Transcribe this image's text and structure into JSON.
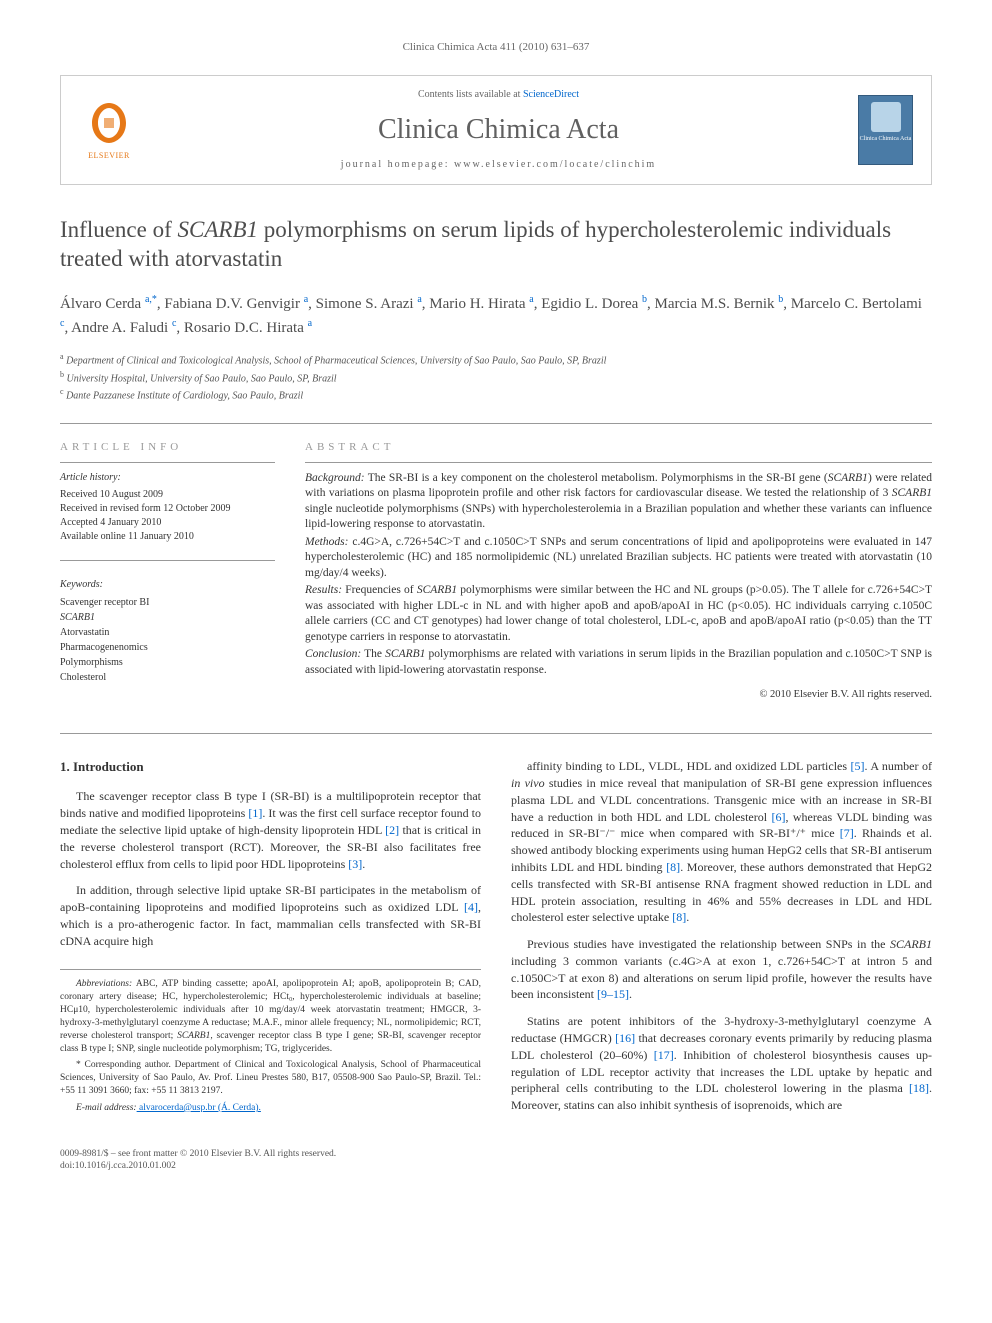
{
  "running_head": "Clinica Chimica Acta 411 (2010) 631–637",
  "banner": {
    "contents_prefix": "Contents lists available at ",
    "contents_link": "ScienceDirect",
    "journal_title": "Clinica Chimica Acta",
    "homepage_prefix": "journal homepage: ",
    "homepage_url": "www.elsevier.com/locate/clinchim",
    "elsevier_label": "ELSEVIER",
    "cover_label": "Clinica Chimica Acta"
  },
  "article": {
    "title_pre": "Influence of ",
    "title_gene": "SCARB1",
    "title_post": " polymorphisms on serum lipids of hypercholesterolemic individuals treated with atorvastatin",
    "authors_html": "Álvaro Cerda <sup>a,*</sup>, Fabiana D.V. Genvigir <sup>a</sup>, Simone S. Arazi <sup>a</sup>, Mario H. Hirata <sup>a</sup>, Egidio L. Dorea <sup>b</sup>, Marcia M.S. Bernik <sup>b</sup>, Marcelo C. Bertolami <sup>c</sup>, Andre A. Faludi <sup>c</sup>, Rosario D.C. Hirata <sup>a</sup>",
    "affiliations": {
      "a": "Department of Clinical and Toxicological Analysis, School of Pharmaceutical Sciences, University of Sao Paulo, Sao Paulo, SP, Brazil",
      "b": "University Hospital, University of Sao Paulo, Sao Paulo, SP, Brazil",
      "c": "Dante Pazzanese Institute of Cardiology, Sao Paulo, Brazil"
    }
  },
  "info": {
    "section_label": "ARTICLE INFO",
    "history_label": "Article history:",
    "received": "Received 10 August 2009",
    "revised": "Received in revised form 12 October 2009",
    "accepted": "Accepted 4 January 2010",
    "online": "Available online 11 January 2010",
    "keywords_label": "Keywords:",
    "keywords": [
      "Scavenger receptor BI",
      "SCARB1",
      "Atorvastatin",
      "Pharmacogenenomics",
      "Polymorphisms",
      "Cholesterol"
    ]
  },
  "abstract": {
    "section_label": "ABSTRACT",
    "background_label": "Background:",
    "background": " The SR-BI is a key component on the cholesterol metabolism. Polymorphisms in the SR-BI gene (SCARB1) were related with variations on plasma lipoprotein profile and other risk factors for cardiovascular disease. We tested the relationship of 3 SCARB1 single nucleotide polymorphisms (SNPs) with hypercholesterolemia in a Brazilian population and whether these variants can influence lipid-lowering response to atorvastatin.",
    "methods_label": "Methods:",
    "methods": " c.4G>A, c.726+54C>T and c.1050C>T SNPs and serum concentrations of lipid and apolipoproteins were evaluated in 147 hypercholesterolemic (HC) and 185 normolipidemic (NL) unrelated Brazilian subjects. HC patients were treated with atorvastatin (10 mg/day/4 weeks).",
    "results_label": "Results:",
    "results": " Frequencies of SCARB1 polymorphisms were similar between the HC and NL groups (p>0.05). The T allele for c.726+54C>T was associated with higher LDL-c in NL and with higher apoB and apoB/apoAI in HC (p<0.05). HC individuals carrying c.1050C allele carriers (CC and CT genotypes) had lower change of total cholesterol, LDL-c, apoB and apoB/apoAI ratio (p<0.05) than the TT genotype carriers in response to atorvastatin.",
    "conclusion_label": "Conclusion:",
    "conclusion": " The SCARB1 polymorphisms are related with variations in serum lipids in the Brazilian population and c.1050C>T SNP is associated with lipid-lowering atorvastatin response.",
    "copyright": "© 2010 Elsevier B.V. All rights reserved."
  },
  "body": {
    "intro_head": "1. Introduction",
    "p1": "The scavenger receptor class B type I (SR-BI) is a multilipoprotein receptor that binds native and modified lipoproteins [1]. It was the first cell surface receptor found to mediate the selective lipid uptake of high-density lipoprotein HDL [2] that is critical in the reverse cholesterol transport (RCT). Moreover, the SR-BI also facilitates free cholesterol efflux from cells to lipid poor HDL lipoproteins [3].",
    "p2": "In addition, through selective lipid uptake SR-BI participates in the metabolism of apoB-containing lipoproteins and modified lipoproteins such as oxidized LDL [4], which is a pro-atherogenic factor. In fact, mammalian cells transfected with SR-BI cDNA acquire high",
    "p3": "affinity binding to LDL, VLDL, HDL and oxidized LDL particles [5]. A number of in vivo studies in mice reveal that manipulation of SR-BI gene expression influences plasma LDL and VLDL concentrations. Transgenic mice with an increase in SR-BI have a reduction in both HDL and LDL cholesterol [6], whereas VLDL binding was reduced in SR-BI⁻/⁻ mice when compared with SR-BI⁺/⁺ mice [7]. Rhainds et al. showed antibody blocking experiments using human HepG2 cells that SR-BI antiserum inhibits LDL and HDL binding [8]. Moreover, these authors demonstrated that HepG2 cells transfected with SR-BI antisense RNA fragment showed reduction in LDL and HDL protein association, resulting in 46% and 55% decreases in LDL and HDL cholesterol ester selective uptake [8].",
    "p4": "Previous studies have investigated the relationship between SNPs in the SCARB1 including 3 common variants (c.4G>A at exon 1, c.726+54C>T at intron 5 and c.1050C>T at exon 8) and alterations on serum lipid profile, however the results have been inconsistent [9–15].",
    "p5": "Statins are potent inhibitors of the 3-hydroxy-3-methylglutaryl coenzyme A reductase (HMGCR) [16] that decreases coronary events primarily by reducing plasma LDL cholesterol (20–60%) [17]. Inhibition of cholesterol biosynthesis causes up-regulation of LDL receptor activity that increases the LDL uptake by hepatic and peripheral cells contributing to the LDL cholesterol lowering in the plasma [18]. Moreover, statins can also inhibit synthesis of isoprenoids, which are"
  },
  "footnotes": {
    "abbrev_label": "Abbreviations:",
    "abbrev": " ABC, ATP binding cassette; apoAI, apolipoprotein AI; apoB, apolipoprotein B; CAD, coronary artery disease; HC, hypercholesterolemic; HCt₀, hypercholesterolemic individuals at baseline; HCμ10, hypercholesterolemic individuals after 10 mg/day/4 week atorvastatin treatment; HMGCR, 3-hydroxy-3-methylglutaryl coenzyme A reductase; M.A.F., minor allele frequency; NL, normolipidemic; RCT, reverse cholesterol transport; SCARB1, scavenger receptor class B type I gene; SR-BI, scavenger receptor class B type I; SNP, single nucleotide polymorphism; TG, triglycerides.",
    "corr_label": "* Corresponding author.",
    "corr": " Department of Clinical and Toxicological Analysis, School of Pharmaceutical Sciences, University of Sao Paulo, Av. Prof. Lineu Prestes 580, B17, 05508-900 Sao Paulo-SP, Brazil. Tel.: +55 11 3091 3660; fax: +55 11 3813 2197.",
    "email_label": "E-mail address:",
    "email": " alvarocerda@usp.br (Á. Cerda)."
  },
  "footer": {
    "line1": "0009-8981/$ – see front matter © 2010 Elsevier B.V. All rights reserved.",
    "line2": "doi:10.1016/j.cca.2010.01.002"
  },
  "colors": {
    "link": "#0066cc",
    "elsevier_orange": "#e67817",
    "journal_gray": "#606060",
    "cover_blue": "#4a7ba6"
  }
}
